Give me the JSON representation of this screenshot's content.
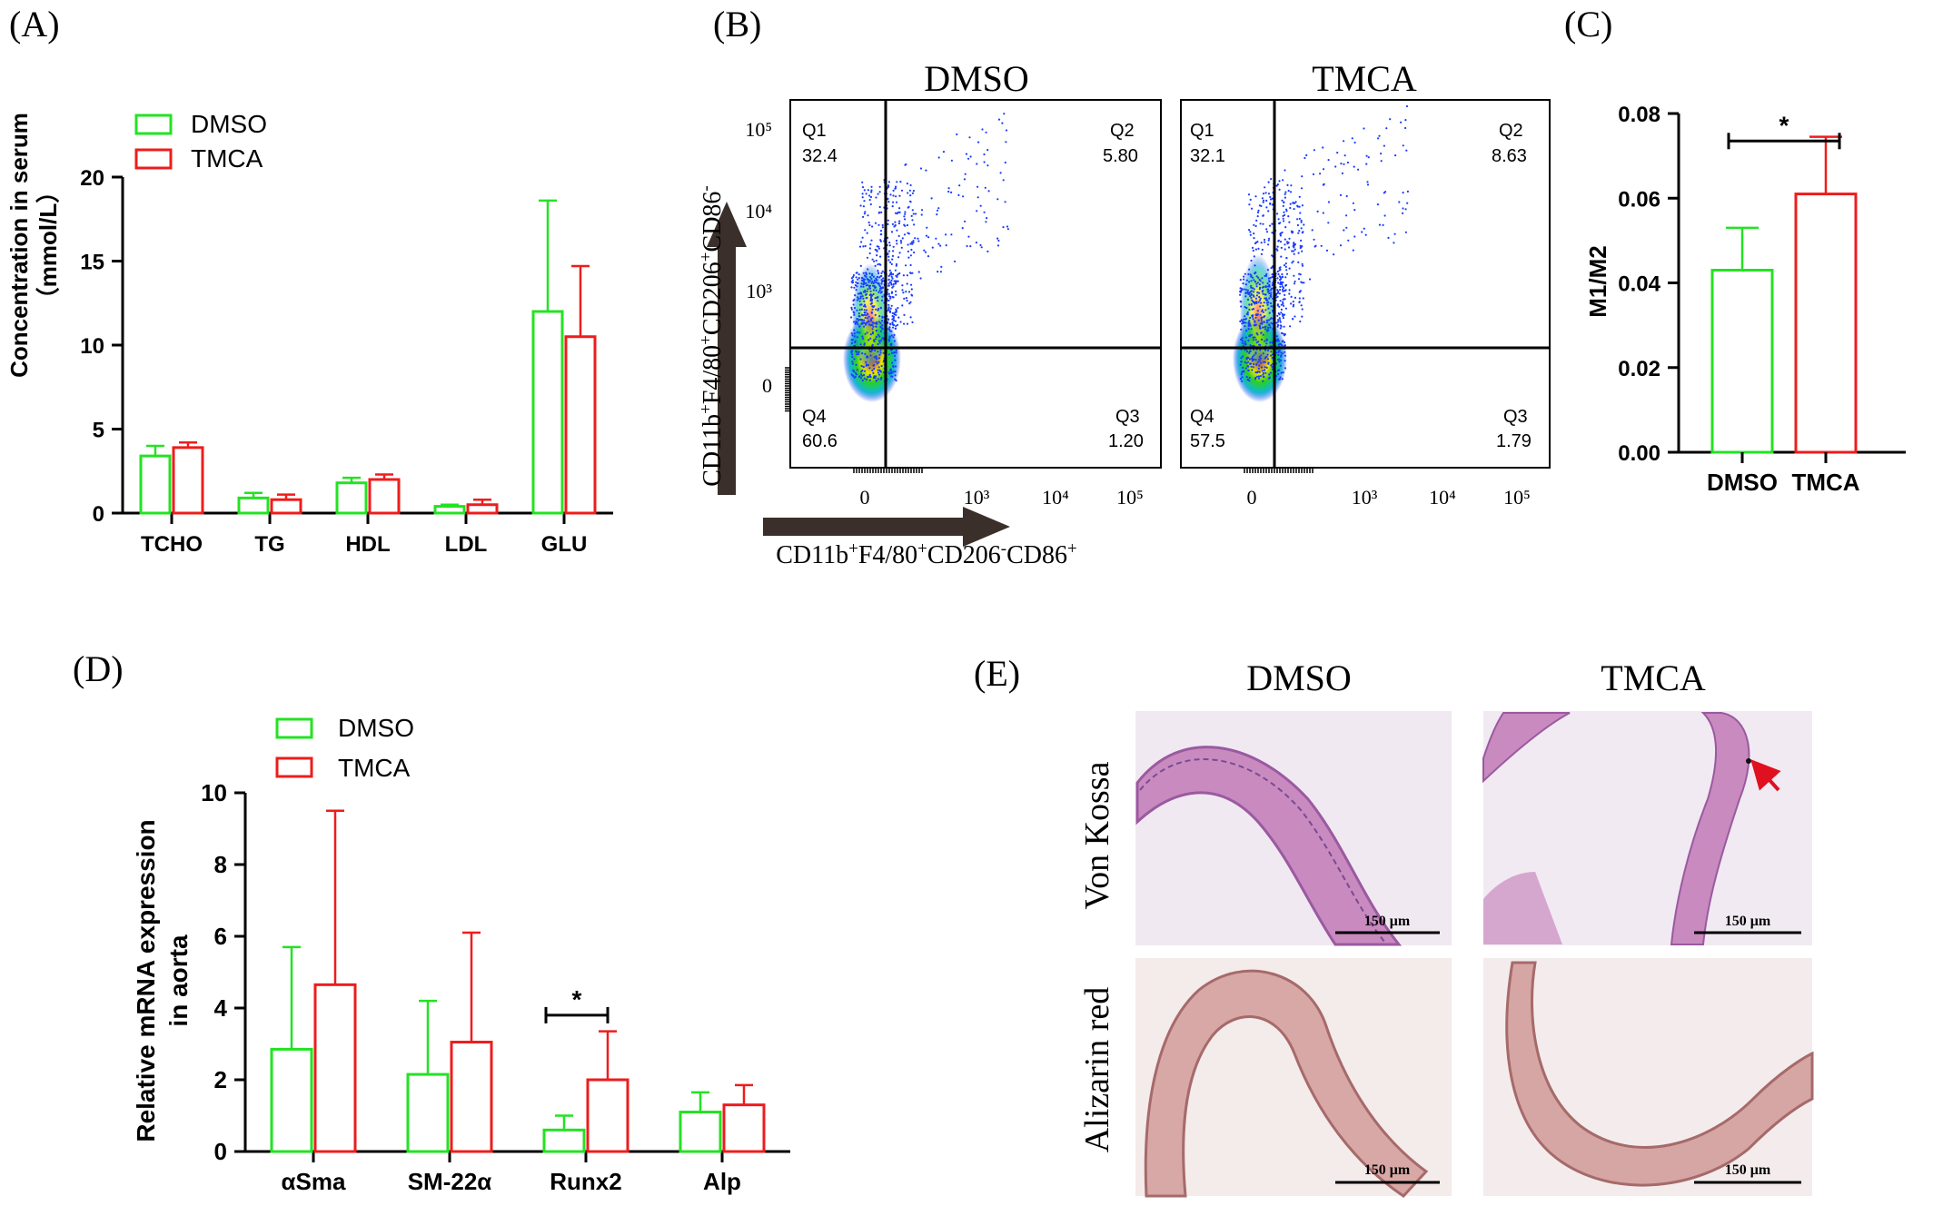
{
  "colors": {
    "dmso": "#22e322",
    "tmca": "#ee1c1c",
    "axis": "#000000",
    "stat": "#000000"
  },
  "panelA": {
    "label": "(A)",
    "legend": [
      "DMSO",
      "TMCA"
    ],
    "ylabel_line1": "Concentration in serum",
    "ylabel_line2": "（mmol/L）",
    "chart_data": {
      "type": "bar",
      "categories": [
        "TCHO",
        "TG",
        "HDL",
        "LDL",
        "GLU"
      ],
      "series": [
        {
          "name": "DMSO",
          "values": [
            3.4,
            0.9,
            1.8,
            0.4,
            12.0
          ],
          "errors": [
            0.6,
            0.3,
            0.3,
            0.1,
            6.6
          ]
        },
        {
          "name": "TMCA",
          "values": [
            3.9,
            0.8,
            2.0,
            0.5,
            10.5
          ],
          "errors": [
            0.3,
            0.3,
            0.3,
            0.3,
            4.2
          ]
        }
      ],
      "ylim": [
        0,
        20
      ],
      "yticks": [
        "0",
        "5",
        "10",
        "15",
        "20"
      ]
    }
  },
  "panelB": {
    "label": "(B)",
    "plots": [
      {
        "title": "DMSO",
        "q1_name": "Q1",
        "q1_val": "32.4",
        "q2_name": "Q2",
        "q2_val": "5.80",
        "q3_name": "Q3",
        "q3_val": "1.20",
        "q4_name": "Q4",
        "q4_val": "60.6"
      },
      {
        "title": "TMCA",
        "q1_name": "Q1",
        "q1_val": "32.1",
        "q2_name": "Q2",
        "q2_val": "8.63",
        "q3_name": "Q3",
        "q3_val": "1.79",
        "q4_name": "Q4",
        "q4_val": "57.5"
      }
    ],
    "yticks": [
      "10⁵",
      "10⁴",
      "10³",
      "0"
    ],
    "xticks": [
      "0",
      "10³",
      "10⁴",
      "10⁵"
    ],
    "ylabel_base": "CD11b",
    "ylabel_sup1": "+",
    "ylabel_mid": "F4/80",
    "ylabel_sup2": "+",
    "ylabel_mid2": "CD206",
    "ylabel_sup3": "+",
    "ylabel_mid3": "CD86",
    "ylabel_sup4": "-",
    "xlabel_base": "CD11b",
    "xlabel_sup1": "+",
    "xlabel_mid": "F4/80",
    "xlabel_sup2": "+",
    "xlabel_mid2": "CD206",
    "xlabel_sup3": "-",
    "xlabel_mid3": "CD86",
    "xlabel_sup4": "+"
  },
  "panelC": {
    "label": "(C)",
    "ylabel": "M1/M2",
    "sig": "*",
    "chart_data": {
      "type": "bar",
      "categories": [
        "DMSO",
        "TMCA"
      ],
      "values": [
        0.043,
        0.061
      ],
      "errors": [
        0.01,
        0.0135
      ],
      "ylim": [
        0,
        0.08
      ],
      "yticks": [
        "0.00",
        "0.02",
        "0.04",
        "0.06",
        "0.08"
      ]
    }
  },
  "panelD": {
    "label": "(D)",
    "legend": [
      "DMSO",
      "TMCA"
    ],
    "ylabel_line1": "Relative mRNA expression",
    "ylabel_line2": "in aorta",
    "sig": "*",
    "chart_data": {
      "type": "bar",
      "categories": [
        "αSma",
        "SM-22α",
        "Runx2",
        "Alp"
      ],
      "series": [
        {
          "name": "DMSO",
          "values": [
            2.85,
            2.15,
            0.6,
            1.1
          ],
          "errors": [
            2.85,
            2.05,
            0.4,
            0.55
          ]
        },
        {
          "name": "TMCA",
          "values": [
            4.65,
            3.05,
            2.0,
            1.3
          ],
          "errors": [
            4.85,
            3.05,
            1.35,
            0.55
          ]
        }
      ],
      "ylim": [
        0,
        10
      ],
      "yticks": [
        "0",
        "2",
        "4",
        "6",
        "8",
        "10"
      ]
    }
  },
  "panelE": {
    "label": "(E)",
    "col_titles": [
      "DMSO",
      "TMCA"
    ],
    "row_labels": [
      "Von Kossa",
      "Alizarin red"
    ],
    "scale_label": "150 μm"
  }
}
